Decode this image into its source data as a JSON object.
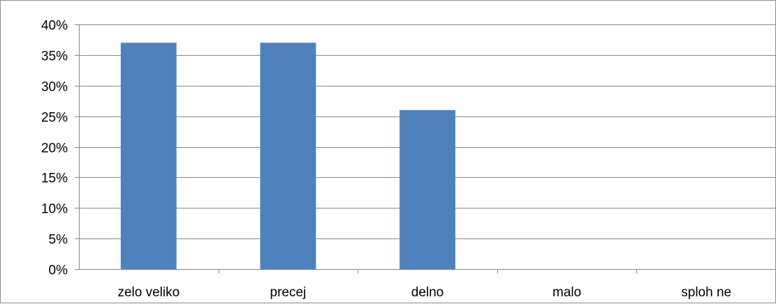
{
  "chart_data": {
    "type": "bar",
    "title": "",
    "xlabel": "",
    "ylabel": "",
    "categories": [
      "zelo veliko",
      "precej",
      "delno",
      "malo",
      "sploh ne"
    ],
    "values": [
      37,
      37,
      26,
      0,
      0
    ],
    "ylim": [
      0,
      40
    ],
    "yticks": [
      0,
      5,
      10,
      15,
      20,
      25,
      30,
      35,
      40
    ],
    "ytick_labels": [
      "0%",
      "5%",
      "10%",
      "15%",
      "20%",
      "25%",
      "30%",
      "35%",
      "40%"
    ],
    "grid": true,
    "legend": "none",
    "bar_color": "#4f81bd",
    "grid_color": "#868686"
  }
}
